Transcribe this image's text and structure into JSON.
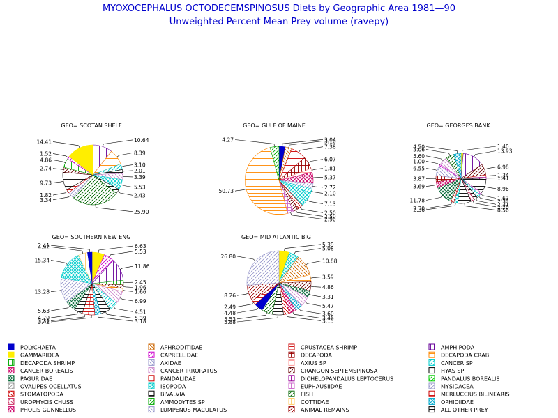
{
  "title": "MYOXOCEPHALUS OCTODECEMSPINOSUS Diets by Geographic Area 1981—90",
  "subtitle": "Unweighted Percent Mean Prey volume (ravepy)",
  "chart_data": [
    {
      "type": "pie",
      "title": "GEO= SCOTAN SHELF",
      "slices": [
        {
          "category": "AMPHIPODA",
          "value": 10.64,
          "label": "10.64"
        },
        {
          "category": "DECAPODA CRAB",
          "value": 8.39,
          "label": "8.39"
        },
        {
          "category": "CANCER SP",
          "value": 3.1,
          "label": "3.10"
        },
        {
          "category": "HYAS SP",
          "value": 2.01,
          "label": "2.01"
        },
        {
          "category": "CANCER IRRORATUS",
          "value": 3.39,
          "label": "3.39"
        },
        {
          "category": "ISOPODA",
          "value": 5.53,
          "label": "5.53"
        },
        {
          "category": "BIVALVIA",
          "value": 2.43,
          "label": "2.43"
        },
        {
          "category": "FISH",
          "value": 25.9,
          "label": "25.90"
        },
        {
          "category": "MYSIDACEA",
          "value": 3.34,
          "label": "3.34"
        },
        {
          "category": "PANDALIDAE",
          "value": 1.82,
          "label": "1.82"
        },
        {
          "category": "ALL OTHER PREY",
          "value": 9.73,
          "label": "9.73"
        },
        {
          "category": "CRANGON SEPTEMSPINOSA",
          "value": 2.74,
          "label": "2.74"
        },
        {
          "category": "DECAPODA SHRIMP",
          "value": 4.86,
          "label": "4.86"
        },
        {
          "category": "CAPRELLIDAE",
          "value": 1.52,
          "label": "1.52"
        },
        {
          "category": "GAMMARIDEA",
          "value": 14.41,
          "label": "14.41"
        }
      ]
    },
    {
      "type": "pie",
      "title": "GEO= GULF OF MAINE",
      "slices": [
        {
          "category": "POLYCHAETA",
          "value": 3.04,
          "label": "3.04"
        },
        {
          "category": "APHRODITIDAE",
          "value": 3.16,
          "label": "3.16"
        },
        {
          "category": "CRUSTACEA SHRIMP",
          "value": 7.38,
          "label": "7.38"
        },
        {
          "category": "DECAPODA",
          "value": 6.07,
          "label": "6.07"
        },
        {
          "category": "AXIUS SP",
          "value": 1.81,
          "label": "1.81"
        },
        {
          "category": "CANCER BOREALIS",
          "value": 5.37,
          "label": "5.37"
        },
        {
          "category": "MYSIDACEA",
          "value": 2.72,
          "label": "2.72"
        },
        {
          "category": "CANCER SP",
          "value": 2.1,
          "label": "2.10"
        },
        {
          "category": "ISOPODA",
          "value": 7.13,
          "label": "7.13"
        },
        {
          "category": "STOMATOPODA",
          "value": 2.5,
          "label": "2.50"
        },
        {
          "category": "CRANGON SEPTEMSPINOSA",
          "value": 2.5,
          "label": "2.50"
        },
        {
          "category": "EUPHAUSIIDAE",
          "value": 2.9,
          "label": "2.90"
        },
        {
          "category": "DECAPODA CRAB",
          "value": 50.73,
          "label": "50.73"
        },
        {
          "category": "AMMODYTES SP",
          "value": 4.27,
          "label": "4.27"
        }
      ]
    },
    {
      "type": "pie",
      "title": "GEO= GEORGES BANK",
      "slices": [
        {
          "category": "GAMMARIDEA",
          "value": 1.4,
          "label": "1.40"
        },
        {
          "category": "AMPHIPODA",
          "value": 13.93,
          "label": "13.93"
        },
        {
          "category": "CRANGON SEPTEMSPINOSA",
          "value": 6.98,
          "label": "6.98"
        },
        {
          "category": "CRUSTACEA SHRIMP",
          "value": 1.34,
          "label": "1.34"
        },
        {
          "category": "DICHELOPANDALUS LEPTOCERUS",
          "value": 1.41,
          "label": "1.41"
        },
        {
          "category": "HYAS SP",
          "value": 8.96,
          "label": "8.96"
        },
        {
          "category": "EUPHAUSIIDAE",
          "value": 1.63,
          "label": "1.63"
        },
        {
          "category": "CANCER SP",
          "value": 2.33,
          "label": "2.33"
        },
        {
          "category": "BIVALVIA",
          "value": 2.31,
          "label": "2.31"
        },
        {
          "category": "UROPHYCIS CHUSS",
          "value": 2.2,
          "label": "2.20"
        },
        {
          "category": "ALL OTHER PREY",
          "value": 8.56,
          "label": "8.56"
        },
        {
          "category": "ISOPODA",
          "value": 2.36,
          "label": "2.36"
        },
        {
          "category": "STOMATOPODA",
          "value": 2.3,
          "label": "2.30"
        },
        {
          "category": "PAGURIDAE",
          "value": 11.78,
          "label": "11.78"
        },
        {
          "category": "CANCER BOREALIS",
          "value": 3.69,
          "label": "3.69"
        },
        {
          "category": "DECAPODA",
          "value": 3.87,
          "label": "3.87"
        },
        {
          "category": "AXIDAE",
          "value": 6.55,
          "label": "6.55"
        },
        {
          "category": "CAPRELLIDAE",
          "value": 1.0,
          "label": "1.00"
        },
        {
          "category": "CANCER IRRORATUS",
          "value": 5.6,
          "label": "5.60"
        },
        {
          "category": "FISH",
          "value": 5.06,
          "label": "5.06"
        },
        {
          "category": "OPHIDIIDAE",
          "value": 4.5,
          "label": "4.50"
        }
      ]
    },
    {
      "type": "pie",
      "title": "GEO= SOUTHERN NEW ENG",
      "slices": [
        {
          "category": "GAMMARIDEA",
          "value": 6.63,
          "label": "6.63"
        },
        {
          "category": "CAPRELLIDAE",
          "value": 5.53,
          "label": "5.53"
        },
        {
          "category": "AMPHIPODA",
          "value": 11.86,
          "label": "11.86"
        },
        {
          "category": "DECAPODA SHRIMP",
          "value": 2.45,
          "label": "2.45"
        },
        {
          "category": "CRANGON SEPTEMSPINOSA",
          "value": 1.96,
          "label": "1.96"
        },
        {
          "category": "DECAPODA CRAB",
          "value": 1.66,
          "label": "1.66"
        },
        {
          "category": "CANCER IRRORATUS",
          "value": 6.99,
          "label": "6.99"
        },
        {
          "category": "CANCER SP",
          "value": 4.51,
          "label": "4.51"
        },
        {
          "category": "BIVALVIA",
          "value": 5.39,
          "label": "5.39"
        },
        {
          "category": "OPHIDIIDAE",
          "value": 3.18,
          "label": "3.18"
        },
        {
          "category": "CRUSTACEA SHRIMP",
          "value": 3.42,
          "label": "3.42"
        },
        {
          "category": "PANDALIDAE",
          "value": 3.31,
          "label": "3.31"
        },
        {
          "category": "ALL OTHER PREY",
          "value": 4.7,
          "label": "4.70"
        },
        {
          "category": "PAGURIDAE",
          "value": 5.63,
          "label": "5.63"
        },
        {
          "category": "MYSIDACEA",
          "value": 13.28,
          "label": "13.28"
        },
        {
          "category": "ISOPODA",
          "value": 15.34,
          "label": "15.34"
        },
        {
          "category": "COTTIDAE",
          "value": 4.92,
          "label": "4.92"
        },
        {
          "category": "POLYCHAETA",
          "value": 2.41,
          "label": "2.41"
        }
      ]
    },
    {
      "type": "pie",
      "title": "GEO= MID ATLANTIC BIG",
      "slices": [
        {
          "category": "GAMMARIDEA",
          "value": 5.39,
          "label": "5.39"
        },
        {
          "category": "ISOPODA",
          "value": 5.08,
          "label": "5.08"
        },
        {
          "category": "APHRODITIDAE",
          "value": 10.88,
          "label": "10.88"
        },
        {
          "category": "DECAPODA CRAB",
          "value": 3.59,
          "label": "3.59"
        },
        {
          "category": "CRANGON SEPTEMSPINOSA",
          "value": 4.86,
          "label": "4.86"
        },
        {
          "category": "PAGURIDAE",
          "value": 3.31,
          "label": "3.31"
        },
        {
          "category": "CANCER IRRORATUS",
          "value": 5.47,
          "label": "5.47"
        },
        {
          "category": "OPHIDIIDAE",
          "value": 3.6,
          "label": "3.60"
        },
        {
          "category": "PHOLIS GUNNELLUS",
          "value": 3.46,
          "label": "3.46"
        },
        {
          "category": "STOMATOPODA",
          "value": 3.15,
          "label": "3.15"
        },
        {
          "category": "ALL OTHER PREY",
          "value": 5.88,
          "label": "5.88"
        },
        {
          "category": "FISH",
          "value": 5.53,
          "label": "5.53"
        },
        {
          "category": "POLYCHAETA",
          "value": 4.48,
          "label": "4.48"
        },
        {
          "category": "PANDALIDAE",
          "value": 2.49,
          "label": "2.49"
        },
        {
          "category": "ANIMAL REMAINS",
          "value": 8.26,
          "label": "8.26"
        },
        {
          "category": "MYSIDACEA",
          "value": 26.8,
          "label": "26.80"
        }
      ]
    }
  ],
  "legend": [
    {
      "label": "POLYCHAETA",
      "color": "#0000cc",
      "pattern": "solid"
    },
    {
      "label": "APHRODITIDAE",
      "color": "#cc6600",
      "pattern": "diag2"
    },
    {
      "label": "CRUSTACEA SHRIMP",
      "color": "#cc0000",
      "pattern": "horiz"
    },
    {
      "label": "AMPHIPODA",
      "color": "#660099",
      "pattern": "vert"
    },
    {
      "label": "GAMMARIDEA",
      "color": "#ffee00",
      "pattern": "solid"
    },
    {
      "label": "CAPRELLIDAE",
      "color": "#cc00cc",
      "pattern": "diag1"
    },
    {
      "label": "DECAPODA",
      "color": "#990000",
      "pattern": "cross"
    },
    {
      "label": "DECAPODA CRAB",
      "color": "#ff8800",
      "pattern": "horiz"
    },
    {
      "label": "DECAPODA SHRIMP",
      "color": "#00aa00",
      "pattern": "vert"
    },
    {
      "label": "AXIDAE",
      "color": "#9999cc",
      "pattern": "diag2"
    },
    {
      "label": "AXIUS SP",
      "color": "#ff9999",
      "pattern": "horiz"
    },
    {
      "label": "CANCER SP",
      "color": "#00cccc",
      "pattern": "diag1"
    },
    {
      "label": "CANCER BOREALIS",
      "color": "#cc0066",
      "pattern": "xcross"
    },
    {
      "label": "CANCER IRRORATUS",
      "color": "#cc88cc",
      "pattern": "diag2"
    },
    {
      "label": "CRANGON SEPTEMSPINOSA",
      "color": "#660000",
      "pattern": "diag1"
    },
    {
      "label": "HYAS SP",
      "color": "#000000",
      "pattern": "horiz"
    },
    {
      "label": "PAGURIDAE",
      "color": "#006633",
      "pattern": "xcross"
    },
    {
      "label": "PANDALIDAE",
      "color": "#cc0000",
      "pattern": "horiz"
    },
    {
      "label": "DICHELOPANDALUS LEPTOCERUS",
      "color": "#990099",
      "pattern": "vert"
    },
    {
      "label": "PANDALUS BOREALIS",
      "color": "#00cc00",
      "pattern": "diag1"
    },
    {
      "label": "OVALIPES OCELLATUS",
      "color": "#999999",
      "pattern": "diag1"
    },
    {
      "label": "ISOPODA",
      "color": "#00cccc",
      "pattern": "xcross"
    },
    {
      "label": "EUPHAUSIIDAE",
      "color": "#cc66cc",
      "pattern": "cross"
    },
    {
      "label": "MYSIDACEA",
      "color": "#9999cc",
      "pattern": "diag1"
    },
    {
      "label": "STOMATOPODA",
      "color": "#cc0000",
      "pattern": "diag2"
    },
    {
      "label": "BIVALVIA",
      "color": "#000000",
      "pattern": "horiz"
    },
    {
      "label": "FISH",
      "color": "#006600",
      "pattern": "diag1"
    },
    {
      "label": "MERLUCCIUS BILINEARIS",
      "color": "#cc0000",
      "pattern": "horiz"
    },
    {
      "label": "UROPHYCIS CHUSS",
      "color": "#cc3366",
      "pattern": "diag2"
    },
    {
      "label": "AMMODYTES SP",
      "color": "#00aa00",
      "pattern": "diag1"
    },
    {
      "label": "COTTIDAE",
      "color": "#ffcc66",
      "pattern": "vert"
    },
    {
      "label": "OPHIDIIDAE",
      "color": "#00aacc",
      "pattern": "xcross"
    },
    {
      "label": "PHOLIS GUNNELLUS",
      "color": "#cc0066",
      "pattern": "xcross"
    },
    {
      "label": "LUMPENUS MACULATUS",
      "color": "#9999cc",
      "pattern": "diag2"
    },
    {
      "label": "ANIMAL REMAINS",
      "color": "#990000",
      "pattern": "diag1"
    },
    {
      "label": "ALL OTHER PREY",
      "color": "#000000",
      "pattern": "horiz"
    }
  ]
}
